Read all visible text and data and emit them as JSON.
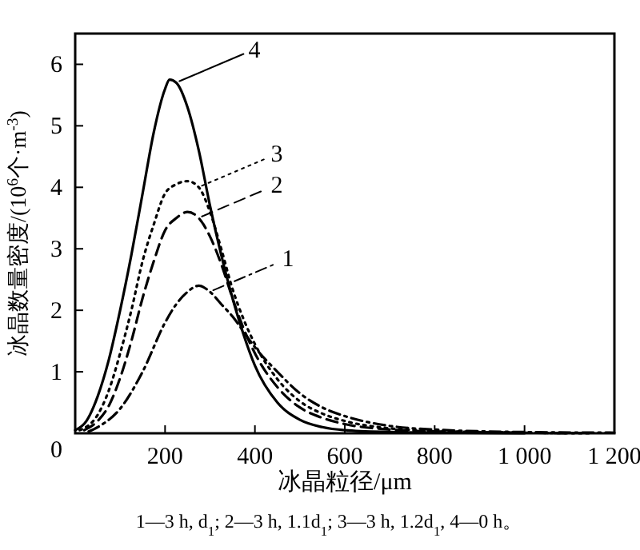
{
  "chart_data": {
    "type": "line",
    "xlabel": "冰晶粒径/μm",
    "ylabel": "冰晶数量密度/(10$^{6}$个·m$^{-3}$)",
    "annotations": [
      "1—3 h, d$_{1}$; 2—3 h, 1.1d$_{1}$; 3—3 h, 1.2d$_{1}$, 4—0 h。"
    ],
    "xlim": [
      0,
      1200
    ],
    "ylim": [
      0,
      6.5
    ],
    "xticks": [
      {
        "value": 0,
        "label": null
      },
      200,
      400,
      600,
      800,
      {
        "value": 1000,
        "label": "1 000"
      },
      {
        "value": 1200,
        "label": "1 200"
      }
    ],
    "yticks": [
      0,
      1,
      2,
      3,
      4,
      5,
      6
    ],
    "grid": false,
    "legend": "top",
    "marker": "none",
    "series": [
      {
        "name": "1",
        "color": "#000000",
        "line_style": "dashdot",
        "x": [
          30,
          50,
          100,
          150,
          200,
          225,
          250,
          275,
          300,
          325,
          350,
          375,
          400,
          450,
          500,
          550,
          600,
          700,
          800,
          1000,
          1200
        ],
        "values": [
          0.03,
          0.1,
          0.4,
          1.0,
          1.8,
          2.1,
          2.3,
          2.4,
          2.3,
          2.1,
          1.9,
          1.65,
          1.4,
          1.0,
          0.65,
          0.42,
          0.28,
          0.12,
          0.06,
          0.02,
          0.01
        ]
      },
      {
        "name": "2",
        "color": "#000000",
        "line_style": "dashed",
        "x": [
          20,
          50,
          75,
          100,
          125,
          150,
          175,
          200,
          225,
          250,
          275,
          300,
          325,
          350,
          375,
          400,
          450,
          500,
          550,
          600,
          700,
          800,
          1000,
          1100
        ],
        "values": [
          0.05,
          0.2,
          0.45,
          0.9,
          1.5,
          2.2,
          2.8,
          3.3,
          3.5,
          3.6,
          3.5,
          3.2,
          2.75,
          2.2,
          1.7,
          1.3,
          0.75,
          0.42,
          0.25,
          0.15,
          0.06,
          0.03,
          0.01,
          0
        ]
      },
      {
        "name": "3",
        "color": "#000000",
        "line_style": "dotted",
        "x": [
          10,
          50,
          75,
          100,
          125,
          150,
          175,
          200,
          225,
          250,
          275,
          300,
          325,
          350,
          375,
          400,
          450,
          500,
          550,
          600,
          700,
          800,
          1000,
          1150
        ],
        "values": [
          0.05,
          0.3,
          0.7,
          1.3,
          2.0,
          2.8,
          3.4,
          3.9,
          4.05,
          4.1,
          4.0,
          3.6,
          3.0,
          2.35,
          1.85,
          1.45,
          0.88,
          0.52,
          0.32,
          0.2,
          0.08,
          0.04,
          0.01,
          0
        ]
      },
      {
        "name": "4",
        "color": "#000000",
        "line_style": "solid",
        "x": [
          0,
          25,
          50,
          75,
          100,
          125,
          150,
          175,
          200,
          210,
          225,
          250,
          275,
          300,
          325,
          350,
          375,
          400,
          450,
          500,
          550,
          600,
          700,
          800,
          1000
        ],
        "values": [
          0.05,
          0.2,
          0.6,
          1.2,
          2.0,
          2.9,
          3.9,
          4.9,
          5.6,
          5.75,
          5.7,
          5.3,
          4.6,
          3.7,
          2.9,
          2.2,
          1.6,
          1.1,
          0.5,
          0.22,
          0.1,
          0.05,
          0.02,
          0.01,
          0
        ]
      }
    ]
  }
}
